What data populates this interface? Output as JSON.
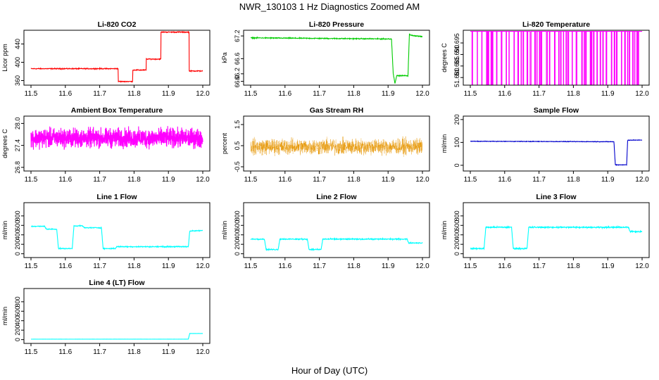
{
  "figure": {
    "title": "NWR_130103  1 Hz Diagnostics Zoomed AM",
    "xlabel": "Hour of Day (UTC)"
  },
  "chart_data": [
    {
      "type": "line",
      "title": "Li-820 CO2",
      "ylabel": "Licor ppm",
      "color": "#ff0000",
      "xlim": [
        11.5,
        12.0
      ],
      "ylim": [
        350,
        470
      ],
      "yticks": [
        "360",
        "400",
        "440"
      ],
      "series": [
        {
          "name": "CO2",
          "x": [
            11.5,
            11.754,
            11.754,
            11.796,
            11.796,
            11.835,
            11.835,
            11.878,
            11.878,
            11.96,
            11.96,
            12.0
          ],
          "values": [
            386,
            386,
            358,
            358,
            383,
            383,
            407,
            407,
            466,
            466,
            381,
            381
          ],
          "noise": 0.8
        }
      ]
    },
    {
      "type": "line",
      "title": "Li-820 Pressure",
      "ylabel": "kPa",
      "color": "#00cc00",
      "xlim": [
        11.5,
        12.0
      ],
      "ylim": [
        65.9,
        67.35
      ],
      "yticks": [
        "66.0",
        "66.2",
        "66.6",
        "67.2"
      ],
      "series": [
        {
          "name": "Pressure",
          "x": [
            11.5,
            11.91,
            11.915,
            11.92,
            11.925,
            11.958,
            11.962,
            11.965,
            12.0
          ],
          "values": [
            67.15,
            67.12,
            66.2,
            65.95,
            66.15,
            66.15,
            67.25,
            67.22,
            67.18
          ],
          "noise": 0.01
        }
      ]
    },
    {
      "type": "line",
      "title": "Li-820 Temperature",
      "ylabel": "degrees C",
      "color": "#ff00ff",
      "xlim": [
        11.5,
        12.0
      ],
      "ylim": [
        51.6767,
        51.7005
      ],
      "yticks": [
        "51.680",
        "51.685",
        "51.690",
        "51.695"
      ],
      "series": [
        {
          "name": "Temperature",
          "high": 51.7,
          "low": 51.677,
          "pattern": "toggle"
        }
      ]
    },
    {
      "type": "line",
      "title": "Ambient Box Temperature",
      "ylabel": "degrees C",
      "color": "#ff00ff",
      "xlim": [
        11.5,
        12.0
      ],
      "ylim": [
        26.7,
        28.2
      ],
      "yticks": [
        "26.8",
        "27.4",
        "28.0"
      ],
      "series": [
        {
          "name": "Ambient",
          "mean": 27.6,
          "noise": 0.22
        }
      ]
    },
    {
      "type": "scatter",
      "title": "Gas Stream RH",
      "ylabel": "percent",
      "color": "#e69500",
      "xlim": [
        11.5,
        12.0
      ],
      "ylim": [
        -0.7,
        1.9
      ],
      "yticks": [
        "-0.5",
        "0.5",
        "1.5"
      ],
      "series": [
        {
          "name": "RH",
          "mean": 0.45,
          "noise": 0.32
        }
      ]
    },
    {
      "type": "line",
      "title": "Sample Flow",
      "ylabel": "ml/min",
      "color": "#0000cc",
      "xlim": [
        11.5,
        12.0
      ],
      "ylim": [
        -25,
        215
      ],
      "yticks": [
        "0",
        "100",
        "200"
      ],
      "series": [
        {
          "name": "Sample",
          "x": [
            11.5,
            11.918,
            11.922,
            11.955,
            11.958,
            12.0
          ],
          "values": [
            105,
            103,
            2,
            2,
            110,
            110
          ],
          "noise": 1.0
        }
      ]
    },
    {
      "type": "line",
      "title": "Line 1 Flow",
      "ylabel": "ml/min",
      "color": "#00ffff",
      "xlim": [
        11.5,
        12.0
      ],
      "ylim": [
        -80,
        1080
      ],
      "yticks": [
        "0",
        "200",
        "400",
        "600",
        "800"
      ],
      "series": [
        {
          "name": "Line1",
          "x": [
            11.5,
            11.54,
            11.545,
            11.575,
            11.58,
            11.62,
            11.625,
            11.65,
            11.655,
            11.705,
            11.71,
            11.745,
            11.75,
            11.958,
            11.962,
            12.0
          ],
          "values": [
            580,
            580,
            520,
            520,
            110,
            110,
            590,
            590,
            550,
            550,
            110,
            110,
            150,
            150,
            480,
            490
          ],
          "noise": 8
        }
      ]
    },
    {
      "type": "line",
      "title": "Line 2 Flow",
      "ylabel": "ml/min",
      "color": "#00ffff",
      "xlim": [
        11.5,
        12.0
      ],
      "ylim": [
        -80,
        1080
      ],
      "yticks": [
        "0",
        "200",
        "400",
        "600",
        "800"
      ],
      "series": [
        {
          "name": "Line2",
          "x": [
            11.5,
            11.54,
            11.545,
            11.58,
            11.585,
            11.665,
            11.67,
            11.705,
            11.71,
            11.955,
            11.96,
            12.0
          ],
          "values": [
            310,
            310,
            90,
            90,
            310,
            310,
            90,
            90,
            310,
            310,
            230,
            230
          ],
          "noise": 10
        }
      ]
    },
    {
      "type": "line",
      "title": "Line 3 Flow",
      "ylabel": "ml/min",
      "color": "#00ffff",
      "xlim": [
        11.5,
        12.0
      ],
      "ylim": [
        -80,
        1080
      ],
      "yticks": [
        "0",
        "200",
        "400",
        "600",
        "800"
      ],
      "series": [
        {
          "name": "Line3",
          "x": [
            11.5,
            11.54,
            11.545,
            11.62,
            11.625,
            11.665,
            11.67,
            11.96,
            11.965,
            12.0
          ],
          "values": [
            110,
            110,
            560,
            560,
            110,
            110,
            560,
            560,
            470,
            470
          ],
          "noise": 12
        }
      ]
    },
    {
      "type": "line",
      "title": "Line 4 (LT) Flow",
      "ylabel": "ml/min",
      "color": "#00ffff",
      "xlim": [
        11.5,
        12.0
      ],
      "ylim": [
        -80,
        1080
      ],
      "yticks": [
        "0",
        "200",
        "400",
        "600",
        "800"
      ],
      "series": [
        {
          "name": "Line4",
          "x": [
            11.5,
            11.958,
            11.962,
            12.0
          ],
          "values": [
            10,
            10,
            130,
            130
          ],
          "noise": 1
        }
      ]
    }
  ],
  "xticks": [
    "11.5",
    "11.6",
    "11.7",
    "11.8",
    "11.9",
    "12.0"
  ]
}
